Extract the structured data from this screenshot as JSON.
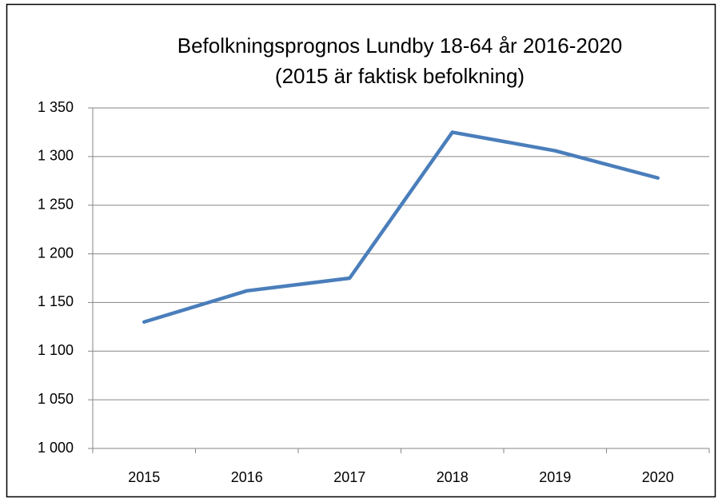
{
  "chart_data": {
    "type": "line",
    "title": [
      "Befolkningsprognos Lundby 18-64 år 2016-2020",
      "(2015 är faktisk befolkning)"
    ],
    "categories": [
      "2015",
      "2016",
      "2017",
      "2018",
      "2019",
      "2020"
    ],
    "series": [
      {
        "name": "Lundby 18-64 år",
        "color": "#4a7ebb",
        "values": [
          1130,
          1162,
          1175,
          1325,
          1306,
          1278
        ]
      }
    ],
    "ylim": [
      1000,
      1350
    ],
    "yticks": [
      {
        "value": 1000,
        "label": "1 000"
      },
      {
        "value": 1050,
        "label": "1 050"
      },
      {
        "value": 1100,
        "label": "1 100"
      },
      {
        "value": 1150,
        "label": "1 150"
      },
      {
        "value": 1200,
        "label": "1 200"
      },
      {
        "value": 1250,
        "label": "1 250"
      },
      {
        "value": 1300,
        "label": "1 300"
      },
      {
        "value": 1350,
        "label": "1 350"
      }
    ],
    "grid": true,
    "legend": false
  }
}
